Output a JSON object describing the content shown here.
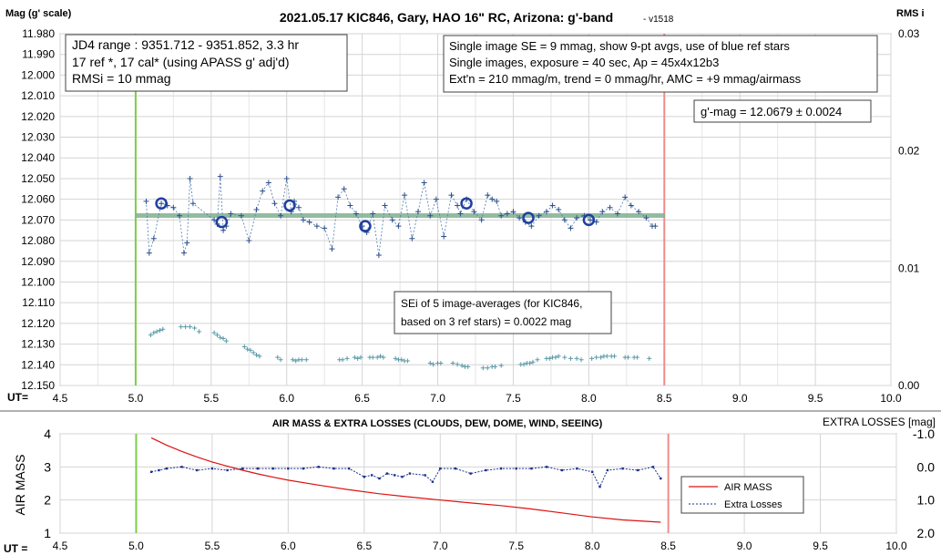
{
  "chart_data": [
    {
      "type": "scatter",
      "title": "2021.05.17 KIC846, Gary, HAO 16\" RC, Arizona: g'-band",
      "subtitle": "- v1518",
      "ylabel": "Mag (g' scale)",
      "y2label": "RMS i",
      "xlabel": "UT=",
      "xlim": [
        4.5,
        10.0
      ],
      "ylim": [
        12.15,
        11.98
      ],
      "y2lim": [
        0.0,
        0.03
      ],
      "grid": true,
      "x_ticks": [
        "4.5",
        "5.0",
        "5.5",
        "6.0",
        "6.5",
        "7.0",
        "7.5",
        "8.0",
        "8.5",
        "9.0",
        "9.5",
        "10.0"
      ],
      "y_ticks": [
        "11.980",
        "11.990",
        "12.000",
        "12.010",
        "12.020",
        "12.030",
        "12.040",
        "12.050",
        "12.060",
        "12.070",
        "12.080",
        "12.090",
        "12.100",
        "12.110",
        "12.120",
        "12.130",
        "12.140",
        "12.150"
      ],
      "y2_ticks": [
        "0.03",
        "0.02",
        "0.01",
        "0.00"
      ],
      "start_line": 5.0,
      "end_line": 8.5,
      "mean_mag": 12.0679,
      "fit_x": [
        5.0,
        8.5
      ],
      "info_box_left": [
        "JD4 range : 9351.712 - 9351.852,  3.3  hr",
        "17 ref *, 17 cal* (using APASS g' adj'd)",
        "RMSi = 10 mmag"
      ],
      "info_box_right": [
        "Single image SE = 9 mmag, show  9-pt avgs, use of blue ref stars",
        "Single images, exposure = 40 sec, Ap = 45x4x12b3",
        "Ext'n = 210 mmag/m, trend =  0 mmag/hr, AMC = +9 mmag/airmass"
      ],
      "mag_box": "g'-mag = 12.0679 ± 0.0024",
      "sei_box": [
        "SEi of 5 image-averages (for KIC846,",
        "based on 3 ref stars) = 0.0022 mag"
      ],
      "single_x": [
        5.07,
        5.09,
        5.12,
        5.17,
        5.21,
        5.25,
        5.29,
        5.32,
        5.34,
        5.36,
        5.38,
        5.52,
        5.54,
        5.56,
        5.58,
        5.6,
        5.63,
        5.7,
        5.75,
        5.8,
        5.84,
        5.88,
        5.92,
        5.96,
        6.0,
        6.03,
        6.05,
        6.08,
        6.11,
        6.15,
        6.2,
        6.25,
        6.3,
        6.34,
        6.38,
        6.42,
        6.46,
        6.5,
        6.53,
        6.57,
        6.61,
        6.65,
        6.7,
        6.74,
        6.78,
        6.83,
        6.87,
        6.91,
        6.95,
        6.99,
        7.04,
        7.09,
        7.13,
        7.15,
        7.19,
        7.24,
        7.29,
        7.33,
        7.36,
        7.39,
        7.42,
        7.46,
        7.5,
        7.54,
        7.58,
        7.62,
        7.67,
        7.72,
        7.76,
        7.8,
        7.84,
        7.88,
        7.92,
        7.97,
        8.01,
        8.05,
        8.09,
        8.14,
        8.19,
        8.24,
        8.28,
        8.33,
        8.38,
        8.42,
        8.44
      ],
      "single_y": [
        12.061,
        12.086,
        12.079,
        12.062,
        12.063,
        12.064,
        12.068,
        12.086,
        12.081,
        12.05,
        12.062,
        12.07,
        12.072,
        12.049,
        12.075,
        12.073,
        12.067,
        12.068,
        12.08,
        12.065,
        12.056,
        12.052,
        12.062,
        12.068,
        12.05,
        12.066,
        12.061,
        12.064,
        12.07,
        12.071,
        12.073,
        12.074,
        12.084,
        12.059,
        12.055,
        12.063,
        12.067,
        12.073,
        12.076,
        12.067,
        12.087,
        12.063,
        12.07,
        12.073,
        12.058,
        12.079,
        12.066,
        12.052,
        12.068,
        12.06,
        12.078,
        12.058,
        12.063,
        12.067,
        12.06,
        12.066,
        12.07,
        12.058,
        12.06,
        12.061,
        12.068,
        12.067,
        12.066,
        12.069,
        12.071,
        12.073,
        12.068,
        12.066,
        12.063,
        12.065,
        12.07,
        12.074,
        12.069,
        12.068,
        12.07,
        12.071,
        12.066,
        12.064,
        12.067,
        12.059,
        12.063,
        12.066,
        12.069,
        12.073,
        12.073
      ],
      "avg_x": [
        5.17,
        5.57,
        6.02,
        6.52,
        7.19,
        7.6,
        8.0
      ],
      "avg_y": [
        12.062,
        12.071,
        12.063,
        12.073,
        12.062,
        12.069,
        12.07
      ],
      "rms_x": [
        5.1,
        5.12,
        5.14,
        5.16,
        5.18,
        5.3,
        5.33,
        5.36,
        5.39,
        5.42,
        5.52,
        5.54,
        5.56,
        5.58,
        5.6,
        5.72,
        5.74,
        5.76,
        5.78,
        5.8,
        5.82,
        5.94,
        5.96,
        6.04,
        6.06,
        6.08,
        6.1,
        6.13,
        6.35,
        6.37,
        6.4,
        6.45,
        6.47,
        6.49,
        6.55,
        6.57,
        6.6,
        6.62,
        6.64,
        6.72,
        6.74,
        6.76,
        6.78,
        6.8,
        6.95,
        6.97,
        7.0,
        7.02,
        7.1,
        7.13,
        7.16,
        7.18,
        7.2,
        7.3,
        7.33,
        7.36,
        7.38,
        7.42,
        7.55,
        7.57,
        7.59,
        7.61,
        7.63,
        7.66,
        7.72,
        7.74,
        7.76,
        7.78,
        7.8,
        7.84,
        7.88,
        7.92,
        7.95,
        8.02,
        8.05,
        8.08,
        8.1,
        8.12,
        8.15,
        8.17,
        8.24,
        8.26,
        8.3,
        8.32,
        8.4
      ],
      "rms_y": [
        0.0043,
        0.0045,
        0.0046,
        0.0047,
        0.0048,
        0.005,
        0.005,
        0.005,
        0.0049,
        0.0046,
        0.0045,
        0.0043,
        0.0041,
        0.004,
        0.0038,
        0.0033,
        0.0031,
        0.003,
        0.0028,
        0.0026,
        0.0025,
        0.0024,
        0.0022,
        0.0022,
        0.0021,
        0.0022,
        0.0022,
        0.0022,
        0.0022,
        0.0022,
        0.0023,
        0.0024,
        0.0023,
        0.0024,
        0.0024,
        0.0024,
        0.0024,
        0.0025,
        0.0024,
        0.0023,
        0.0022,
        0.0022,
        0.0021,
        0.0021,
        0.0019,
        0.0018,
        0.0019,
        0.0019,
        0.0019,
        0.0018,
        0.0017,
        0.0016,
        0.0016,
        0.0015,
        0.0015,
        0.0016,
        0.0016,
        0.0017,
        0.0018,
        0.0018,
        0.0019,
        0.0019,
        0.002,
        0.0022,
        0.0023,
        0.0023,
        0.0024,
        0.0024,
        0.0025,
        0.0024,
        0.0023,
        0.0023,
        0.0022,
        0.0023,
        0.0024,
        0.0024,
        0.0025,
        0.0025,
        0.0025,
        0.0025,
        0.0024,
        0.0024,
        0.0024,
        0.0024,
        0.0023
      ]
    },
    {
      "type": "line",
      "title": "AIR MASS & EXTRA LOSSES (CLOUDS, DEW, DOME, WIND, SEEING)",
      "ylabel": "AIR MASS",
      "y2label": "EXTRA LOSSES [mag]",
      "xlabel": "UT =",
      "xlim": [
        4.5,
        10.0
      ],
      "ylim": [
        1,
        4
      ],
      "y2lim": [
        2.0,
        -1.0
      ],
      "grid": true,
      "legend": "right",
      "x_ticks": [
        "4.5",
        "5.0",
        "5.5",
        "6.0",
        "6.5",
        "7.0",
        "7.5",
        "8.0",
        "8.5",
        "9.0",
        "9.5",
        "10.0"
      ],
      "y_ticks": [
        "1",
        "2",
        "3",
        "4"
      ],
      "y2_ticks": [
        "-1.0",
        "0.0",
        "1.0",
        "2.0"
      ],
      "start_line": 5.0,
      "end_line": 8.5,
      "series": [
        {
          "name": "AIR MASS",
          "color": "#dd1111",
          "x": [
            5.1,
            5.2,
            5.3,
            5.4,
            5.5,
            5.6,
            5.7,
            5.8,
            5.9,
            6.0,
            6.2,
            6.4,
            6.6,
            6.8,
            7.0,
            7.2,
            7.4,
            7.6,
            7.8,
            8.0,
            8.2,
            8.45
          ],
          "values": [
            3.88,
            3.66,
            3.47,
            3.3,
            3.15,
            3.02,
            2.9,
            2.79,
            2.69,
            2.6,
            2.45,
            2.31,
            2.19,
            2.09,
            2.0,
            1.91,
            1.83,
            1.73,
            1.61,
            1.49,
            1.4,
            1.33
          ]
        },
        {
          "name": "Extra Losses",
          "color": "#1b2f8a",
          "x": [
            5.1,
            5.15,
            5.2,
            5.3,
            5.4,
            5.5,
            5.6,
            5.7,
            5.8,
            5.9,
            6.0,
            6.1,
            6.2,
            6.3,
            6.4,
            6.5,
            6.55,
            6.6,
            6.65,
            6.7,
            6.75,
            6.8,
            6.9,
            6.95,
            7.0,
            7.1,
            7.2,
            7.3,
            7.4,
            7.5,
            7.6,
            7.7,
            7.8,
            7.9,
            8.0,
            8.05,
            8.1,
            8.2,
            8.3,
            8.4,
            8.45
          ],
          "values": [
            0.15,
            0.1,
            0.05,
            0.0,
            0.1,
            0.05,
            0.1,
            0.05,
            0.05,
            0.05,
            0.05,
            0.05,
            0.0,
            0.05,
            0.05,
            0.3,
            0.25,
            0.35,
            0.2,
            0.25,
            0.3,
            0.2,
            0.25,
            0.45,
            0.05,
            0.05,
            0.2,
            0.1,
            0.05,
            0.05,
            0.05,
            0.0,
            0.1,
            0.05,
            0.15,
            0.6,
            0.1,
            0.05,
            0.1,
            0.0,
            0.35
          ]
        }
      ]
    }
  ]
}
